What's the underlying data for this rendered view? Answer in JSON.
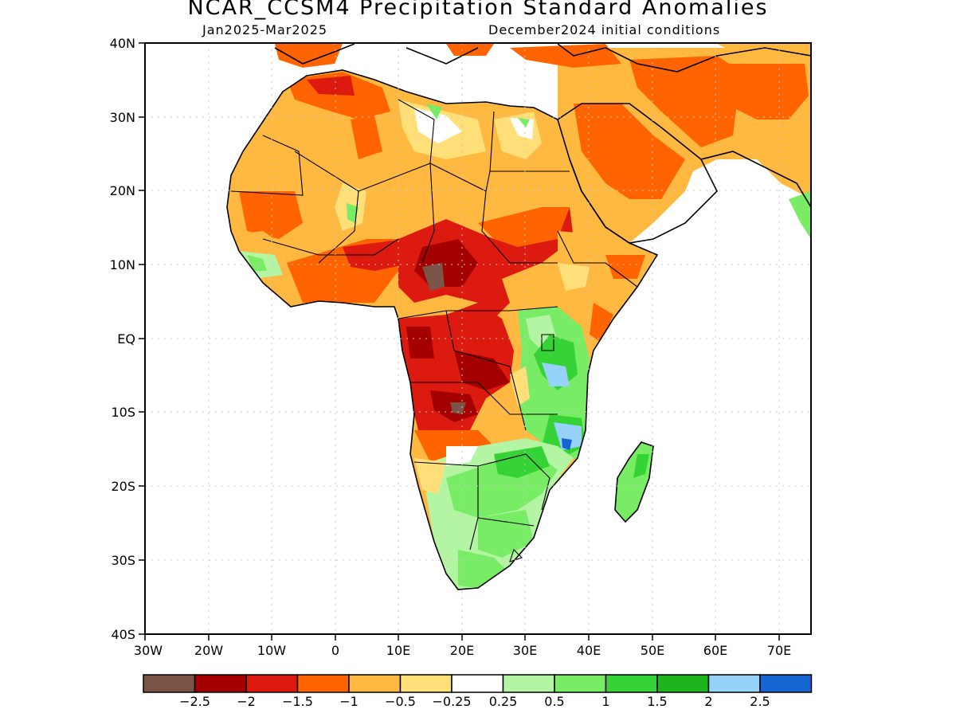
{
  "title": "NCAR_CCSM4 Precipitation Standard Anomalies",
  "subtitle_left": "Jan2025-Mar2025",
  "subtitle_right": "December2024 initial conditions",
  "lat_labels": [
    "40N",
    "30N",
    "20N",
    "10N",
    "EQ",
    "10S",
    "20S",
    "30S",
    "40S"
  ],
  "lon_labels": [
    "30W",
    "20W",
    "10W",
    "0",
    "10E",
    "20E",
    "30E",
    "40E",
    "50E",
    "60E",
    "70E"
  ],
  "colorbar": {
    "colors": [
      "#7a5547",
      "#a50000",
      "#dd1a10",
      "#ff6400",
      "#ffb840",
      "#ffe078",
      "#ffffff",
      "#b4f5a4",
      "#78ec64",
      "#36d336",
      "#1eb41e",
      "#96d2fa",
      "#1464d2"
    ],
    "labels": [
      "-2.5",
      "-2",
      "-1.5",
      "-1",
      "-0.5",
      "-0.25",
      "0.25",
      "0.5",
      "1",
      "1.5",
      "2",
      "2.5"
    ]
  },
  "colors": {
    "land_outline": "#000000",
    "grid": "#bbbbbb"
  }
}
